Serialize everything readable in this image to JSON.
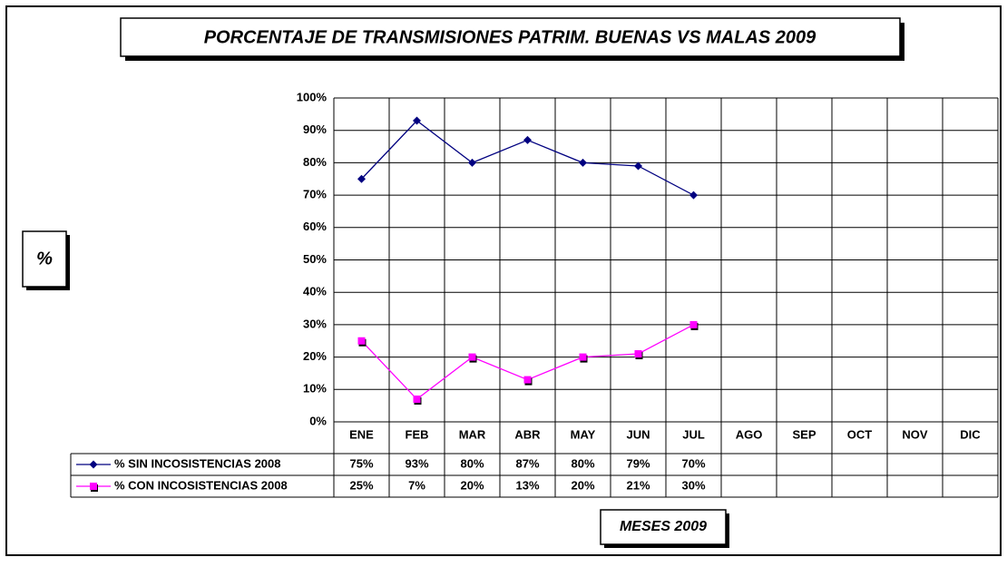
{
  "chart_data": {
    "type": "line",
    "title": "PORCENTAJE DE TRANSMISIONES PATRIM. BUENAS VS MALAS 2009",
    "y_label": "%",
    "x_label": "MESES 2009",
    "categories": [
      "ENE",
      "FEB",
      "MAR",
      "ABR",
      "MAY",
      "JUN",
      "JUL",
      "AGO",
      "SEP",
      "OCT",
      "NOV",
      "DIC"
    ],
    "series": [
      {
        "name": "% SIN INCOSISTENCIAS 2008",
        "color": "#000080",
        "marker": "diamond",
        "values": [
          75,
          93,
          80,
          87,
          80,
          79,
          70,
          null,
          null,
          null,
          null,
          null
        ],
        "value_labels": [
          "75%",
          "93%",
          "80%",
          "87%",
          "80%",
          "79%",
          "70%",
          null,
          null,
          null,
          null,
          null
        ]
      },
      {
        "name": "% CON INCOSISTENCIAS 2008",
        "color": "#ff00ff",
        "marker": "square",
        "values": [
          25,
          7,
          20,
          13,
          20,
          21,
          30,
          null,
          null,
          null,
          null,
          null
        ],
        "value_labels": [
          "25%",
          "7%",
          "20%",
          "13%",
          "20%",
          "21%",
          "30%",
          null,
          null,
          null,
          null,
          null
        ]
      }
    ],
    "ylim": [
      0,
      100
    ],
    "yticks": [
      {
        "value": 0,
        "label": "0%"
      },
      {
        "value": 10,
        "label": "10%"
      },
      {
        "value": 20,
        "label": "20%"
      },
      {
        "value": 30,
        "label": "30%"
      },
      {
        "value": 40,
        "label": "40%"
      },
      {
        "value": 50,
        "label": "50%"
      },
      {
        "value": 60,
        "label": "60%"
      },
      {
        "value": 70,
        "label": "70%"
      },
      {
        "value": 80,
        "label": "80%"
      },
      {
        "value": 90,
        "label": "90%"
      },
      {
        "value": 100,
        "label": "100%"
      }
    ],
    "grid": true,
    "data_table": true
  }
}
